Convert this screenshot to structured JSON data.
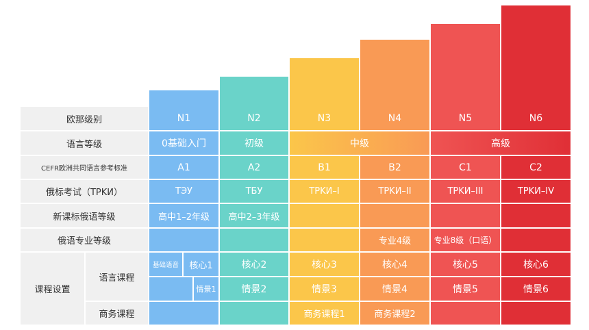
{
  "colors": {
    "N1": "#7abbf2",
    "N2": "#6ad3c9",
    "N3": "#fbc64a",
    "N4": "#f99a55",
    "N5": "#ef5453",
    "N6": "#e02f36",
    "label_bg": "#f0f0f0"
  },
  "row_labels": {
    "level": "欧那级别",
    "grade": "语言等级",
    "cefr": "CEFR欧洲共同语言参考标准",
    "trki": "俄标考试（TPKИ）",
    "curriculum": "新课标俄语等级",
    "major": "俄语专业等级",
    "courses": "课程设置",
    "lang_course": "语言课程",
    "biz_course": "商务课程"
  },
  "levels": [
    "N1",
    "N2",
    "N3",
    "N4",
    "N5",
    "N6"
  ],
  "grades": {
    "n1": "0基础入门",
    "n2": "初级",
    "mid": "中级",
    "high": "高级"
  },
  "cefr": [
    "A1",
    "A2",
    "B1",
    "B2",
    "C1",
    "C2"
  ],
  "trki": [
    "TЭУ",
    "TБУ",
    "TPKИ–I",
    "TPKИ–II",
    "TPKИ–III",
    "TPKИ–IV"
  ],
  "curriculum": {
    "n1": "高中1–2年级",
    "n2": "高中2–3年级"
  },
  "major": {
    "n4": "专业4级",
    "n5": "专业8级（口语）"
  },
  "lang_core": {
    "n1_basic": "基础语音",
    "n1": "核心1",
    "n2": "核心2",
    "n3": "核心3",
    "n4": "核心4",
    "n5": "核心5",
    "n6": "核心6"
  },
  "lang_scene": {
    "n1": "情景1",
    "n2": "情景2",
    "n3": "情景3",
    "n4": "情景4",
    "n5": "情景5",
    "n6": "情景6"
  },
  "business": {
    "n3": "商务课程1",
    "n4": "商务课程2"
  }
}
